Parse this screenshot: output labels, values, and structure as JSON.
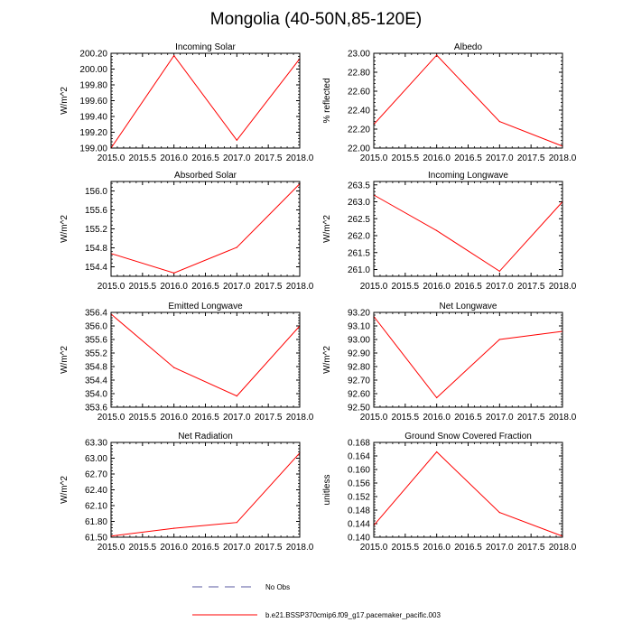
{
  "figure_title": "Mongolia (40-50N,85-120E)",
  "legend": {
    "obs_label": "No Obs",
    "model_label": "b.e21.BSSP370cmip6.f09_g17.pacemaker_pacific.003",
    "obs_color": "#5a5aa0",
    "model_color": "#ff0000"
  },
  "chart_data": [
    {
      "type": "line",
      "title": "Incoming Solar",
      "ylabel": "W/m^2",
      "x": [
        2015,
        2016,
        2017,
        2018
      ],
      "values": [
        199.0,
        200.17,
        199.1,
        200.13
      ],
      "xlim": [
        2015,
        2018
      ],
      "ylim": [
        199.0,
        200.2
      ],
      "xticks": [
        "2015.0",
        "2015.5",
        "2016.0",
        "2016.5",
        "2017.0",
        "2017.5",
        "2018.0"
      ],
      "yticks": [
        199.0,
        199.2,
        199.4,
        199.6,
        199.8,
        200.0,
        200.2
      ],
      "ytick_labels": [
        "199.00",
        "199.20",
        "199.40",
        "199.60",
        "199.80",
        "200.00",
        "200.20"
      ],
      "color": "#ff0000"
    },
    {
      "type": "line",
      "title": "Albedo",
      "ylabel": "% reflected",
      "x": [
        2015,
        2016,
        2017,
        2018
      ],
      "values": [
        22.25,
        22.98,
        22.28,
        22.02
      ],
      "xlim": [
        2015,
        2018
      ],
      "ylim": [
        22.0,
        23.0
      ],
      "xticks": [
        "2015.0",
        "2015.5",
        "2016.0",
        "2016.5",
        "2017.0",
        "2017.5",
        "2018.0"
      ],
      "yticks": [
        22.0,
        22.2,
        22.4,
        22.6,
        22.8,
        23.0
      ],
      "ytick_labels": [
        "22.00",
        "22.20",
        "22.40",
        "22.60",
        "22.80",
        "23.00"
      ],
      "color": "#ff0000"
    },
    {
      "type": "line",
      "title": "Absorbed Solar",
      "ylabel": "W/m^2",
      "x": [
        2015,
        2016,
        2017,
        2018
      ],
      "values": [
        154.68,
        154.27,
        154.81,
        156.15
      ],
      "xlim": [
        2015,
        2018
      ],
      "ylim": [
        154.2,
        156.2
      ],
      "xticks": [
        "2015.0",
        "2015.5",
        "2016.0",
        "2016.5",
        "2017.0",
        "2017.5",
        "2018.0"
      ],
      "yticks": [
        154.4,
        154.8,
        155.2,
        155.6,
        156.0
      ],
      "ytick_labels": [
        "154.4",
        "154.8",
        "155.2",
        "155.6",
        "156.0"
      ],
      "color": "#ff0000"
    },
    {
      "type": "line",
      "title": "Incoming Longwave",
      "ylabel": "W/m^2",
      "x": [
        2015,
        2016,
        2017,
        2018
      ],
      "values": [
        263.2,
        262.15,
        260.95,
        263.0
      ],
      "xlim": [
        2015,
        2018
      ],
      "ylim": [
        260.8,
        263.6
      ],
      "xticks": [
        "2015.0",
        "2015.5",
        "2016.0",
        "2016.5",
        "2017.0",
        "2017.5",
        "2018.0"
      ],
      "yticks": [
        261.0,
        261.5,
        262.0,
        262.5,
        263.0,
        263.5
      ],
      "ytick_labels": [
        "261.0",
        "261.5",
        "262.0",
        "262.5",
        "263.0",
        "263.5"
      ],
      "color": "#ff0000"
    },
    {
      "type": "line",
      "title": "Emitted Longwave",
      "ylabel": "W/m^2",
      "x": [
        2015,
        2016,
        2017,
        2018
      ],
      "values": [
        356.35,
        354.77,
        353.93,
        356.0
      ],
      "xlim": [
        2015,
        2018
      ],
      "ylim": [
        353.6,
        356.4
      ],
      "xticks": [
        "2015.0",
        "2015.5",
        "2016.0",
        "2016.5",
        "2017.0",
        "2017.5",
        "2018.0"
      ],
      "yticks": [
        353.6,
        354.0,
        354.4,
        354.8,
        355.2,
        355.6,
        356.0,
        356.4
      ],
      "ytick_labels": [
        "353.6",
        "354.0",
        "354.4",
        "354.8",
        "355.2",
        "355.6",
        "356.0",
        "356.4"
      ],
      "color": "#ff0000"
    },
    {
      "type": "line",
      "title": "Net Longwave",
      "ylabel": "W/m^2",
      "x": [
        2015,
        2016,
        2017,
        2018
      ],
      "values": [
        93.17,
        92.57,
        93.0,
        93.06
      ],
      "xlim": [
        2015,
        2018
      ],
      "ylim": [
        92.5,
        93.2
      ],
      "xticks": [
        "2015.0",
        "2015.5",
        "2016.0",
        "2016.5",
        "2017.0",
        "2017.5",
        "2018.0"
      ],
      "yticks": [
        92.5,
        92.6,
        92.7,
        92.8,
        92.9,
        93.0,
        93.1,
        93.2
      ],
      "ytick_labels": [
        "92.50",
        "92.60",
        "92.70",
        "92.80",
        "92.90",
        "93.00",
        "93.10",
        "93.20"
      ],
      "color": "#ff0000"
    },
    {
      "type": "line",
      "title": "Net Radiation",
      "ylabel": "W/m^2",
      "x": [
        2015,
        2016,
        2017,
        2018
      ],
      "values": [
        61.52,
        61.67,
        61.78,
        63.1
      ],
      "xlim": [
        2015,
        2018
      ],
      "ylim": [
        61.5,
        63.3
      ],
      "xticks": [
        "2015.0",
        "2015.5",
        "2016.0",
        "2016.5",
        "2017.0",
        "2017.5",
        "2018.0"
      ],
      "yticks": [
        61.5,
        61.8,
        62.1,
        62.4,
        62.7,
        63.0,
        63.3
      ],
      "ytick_labels": [
        "61.50",
        "61.80",
        "62.10",
        "62.40",
        "62.70",
        "63.00",
        "63.30"
      ],
      "color": "#ff0000"
    },
    {
      "type": "line",
      "title": "Ground Snow Covered Fraction",
      "ylabel": "unitless",
      "x": [
        2015,
        2016,
        2017,
        2018
      ],
      "values": [
        0.1435,
        0.1652,
        0.1473,
        0.1403
      ],
      "xlim": [
        2015,
        2018
      ],
      "ylim": [
        0.14,
        0.168
      ],
      "xticks": [
        "2015.0",
        "2015.5",
        "2016.0",
        "2016.5",
        "2017.0",
        "2017.5",
        "2018.0"
      ],
      "yticks": [
        0.14,
        0.144,
        0.148,
        0.152,
        0.156,
        0.16,
        0.164,
        0.168
      ],
      "ytick_labels": [
        "0.140",
        "0.144",
        "0.148",
        "0.152",
        "0.156",
        "0.160",
        "0.164",
        "0.168"
      ],
      "color": "#ff0000"
    }
  ]
}
